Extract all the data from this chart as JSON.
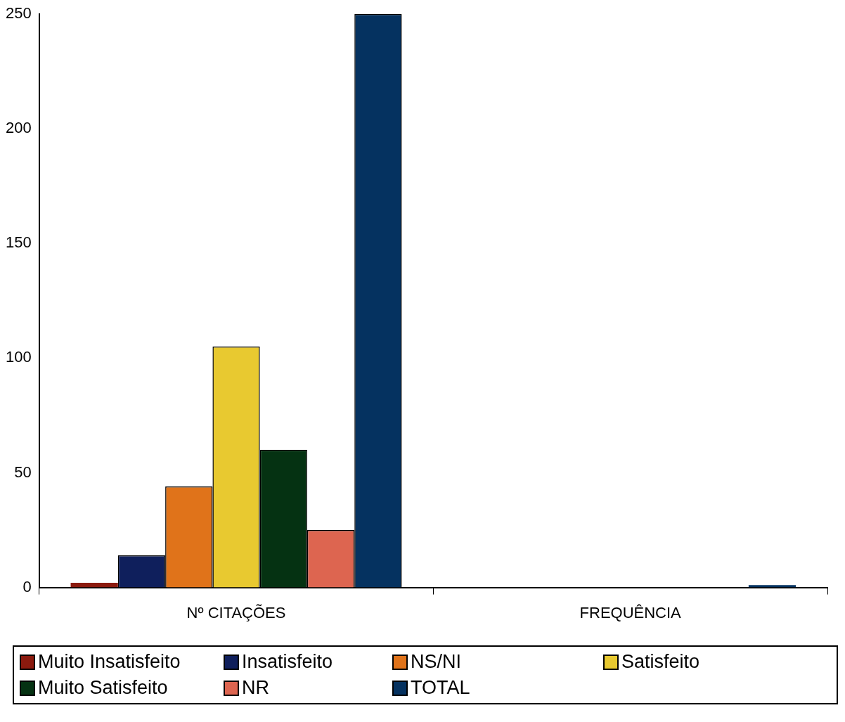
{
  "chart_data": {
    "type": "bar",
    "categories": [
      "Nº CITAÇÕES",
      "FREQUÊNCIA"
    ],
    "series": [
      {
        "name": "Muito Insatisfeito",
        "color": "#8b1a0e",
        "values": [
          2,
          0
        ]
      },
      {
        "name": "Insatisfeito",
        "color": "#0f1f5c",
        "values": [
          14,
          0
        ]
      },
      {
        "name": "NS/NI",
        "color": "#e0731a",
        "values": [
          44,
          0
        ]
      },
      {
        "name": "Satisfeito",
        "color": "#e8c930",
        "values": [
          105,
          0
        ]
      },
      {
        "name": "Muito Satisfeito",
        "color": "#053212",
        "values": [
          60,
          0
        ]
      },
      {
        "name": "NR",
        "color": "#dd6550",
        "values": [
          25,
          0
        ]
      },
      {
        "name": "TOTAL",
        "color": "#053260",
        "values": [
          250,
          1
        ]
      }
    ],
    "ylim": [
      0,
      250
    ],
    "yticks": [
      0,
      50,
      100,
      150,
      200,
      250
    ],
    "grid": false,
    "legend": "bottom"
  }
}
